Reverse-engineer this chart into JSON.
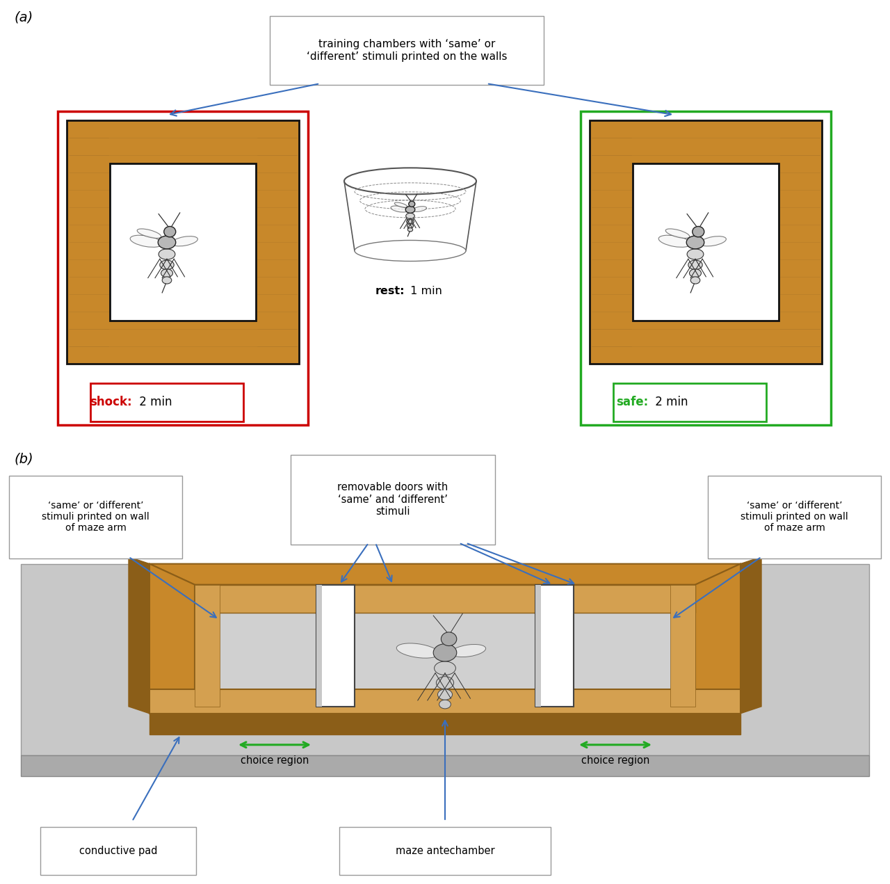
{
  "fig_width": 12.8,
  "fig_height": 12.71,
  "bg_color": "#ffffff",
  "panel_a_label": "(a)",
  "panel_b_label": "(b)",
  "arrow_color": "#3a6fbd",
  "wood_color": "#c8882a",
  "wood_dark": "#8b5e18",
  "wood_light": "#d4a050",
  "black": "#111111",
  "red_border": "#cc0000",
  "green_border": "#22aa22",
  "shock_label": "shock:",
  "shock_time": " 2 min",
  "safe_label": "safe:",
  "safe_time": " 2 min",
  "rest_bold": "rest:",
  "rest_normal": " 1 min",
  "training_box_text": "training chambers with ‘same’ or\n‘different’ stimuli printed on the walls",
  "removable_doors_text": "removable doors with\n‘same’ and ‘different’\nstimuli",
  "left_wall_text": "‘same’ or ‘different’\nstimuli printed on wall\nof maze arm",
  "right_wall_text": "‘same’ or ‘different’\nstimuli printed on wall\nof maze arm",
  "choice_region_left": "choice region",
  "choice_region_right": "choice region",
  "conductive_pad": "conductive pad",
  "maze_antechamber": "maze antechamber",
  "green_arrow": "#22aa22",
  "gray_platform": "#c8c8c8",
  "gray_dark": "#a8a8a8"
}
